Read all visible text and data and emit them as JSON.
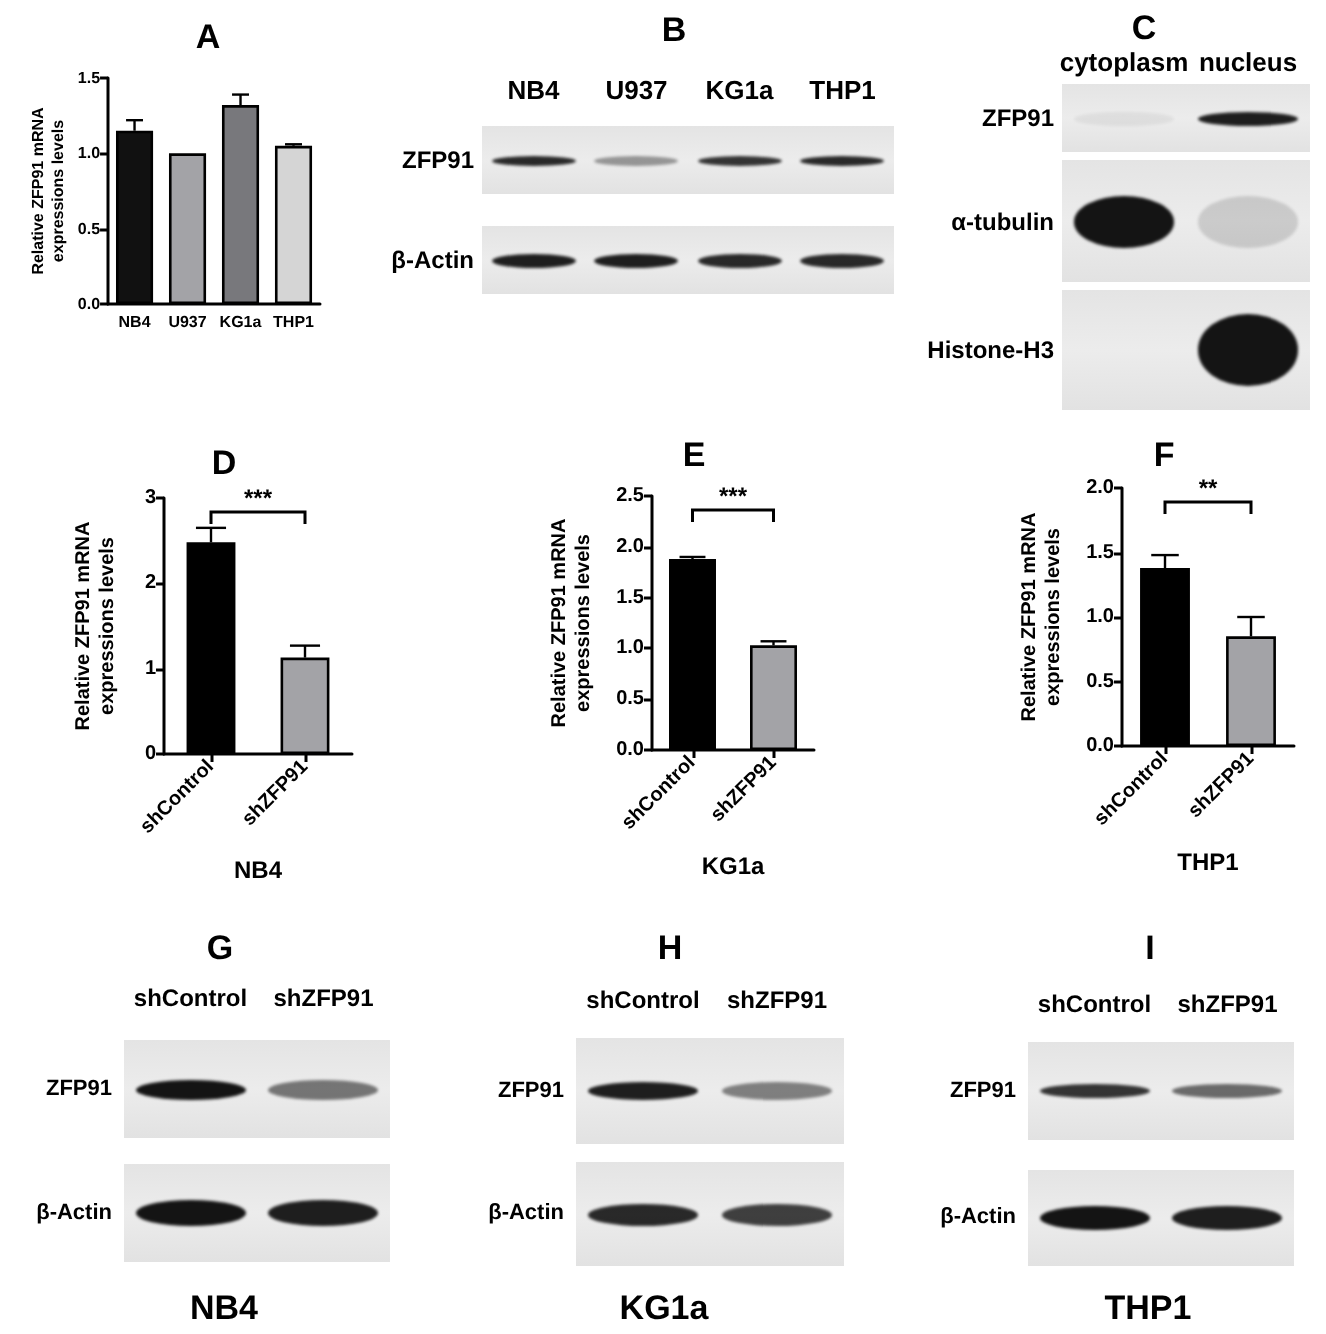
{
  "chart_data": [
    {
      "type": "bar",
      "title": "A",
      "ylabel": "Relative ZFP91 mRNA expressions levels",
      "categories": [
        "NB4",
        "U937",
        "KG1a",
        "THP1"
      ],
      "values": [
        1.15,
        1.0,
        1.32,
        1.05
      ],
      "colors": [
        "#111111",
        "#a3a3a7",
        "#78787c",
        "#d5d5d5"
      ],
      "errors": [
        [
          1.15,
          1.22
        ],
        null,
        [
          1.32,
          1.39
        ],
        [
          1.05,
          1.06
        ]
      ],
      "ylim": [
        0,
        1.5
      ],
      "yticks": [
        {
          "value": 0,
          "label": "0.0"
        },
        {
          "value": 0.5,
          "label": "0.5"
        },
        {
          "value": 1,
          "label": "1.0"
        },
        {
          "value": 1.5,
          "label": "1.5"
        }
      ]
    },
    {
      "type": "other",
      "title": "B",
      "categories": [
        "NB4",
        "U937",
        "KG1a",
        "THP1"
      ],
      "y_categories": [
        "ZFP91",
        "β-Actin"
      ]
    },
    {
      "type": "other",
      "title": "C",
      "categories": [
        "cytoplasm",
        "nucleus"
      ],
      "y_categories": [
        "ZFP91",
        "α-tubulin",
        "Histone-H3"
      ]
    },
    {
      "type": "bar",
      "title": "D",
      "ylabel": "Relative ZFP91 mRNA expressions levels",
      "xlabel": "NB4",
      "categories": [
        "shControl",
        "shZFP91"
      ],
      "values": [
        2.48,
        1.13
      ],
      "colors": [
        "#000000",
        "#a3a3a7"
      ],
      "errors": [
        [
          2.48,
          2.65
        ],
        [
          1.13,
          1.27
        ]
      ],
      "ylim": [
        0,
        3
      ],
      "yticks": [
        0,
        1,
        2,
        3
      ],
      "annotations": [
        "***"
      ]
    },
    {
      "type": "bar",
      "title": "E",
      "ylabel": "Relative ZFP91 mRNA expressions levels",
      "xlabel": "KG1a",
      "categories": [
        "shControl",
        "shZFP91"
      ],
      "values": [
        1.88,
        1.03
      ],
      "colors": [
        "#000000",
        "#a3a3a7"
      ],
      "errors": [
        [
          1.88,
          1.9
        ],
        [
          1.03,
          1.07
        ]
      ],
      "ylim": [
        0,
        2.5
      ],
      "yticks": [
        {
          "value": 0,
          "label": "0.0"
        },
        {
          "value": 0.5,
          "label": "0.5"
        },
        {
          "value": 1,
          "label": "1.0"
        },
        {
          "value": 1.5,
          "label": "1.5"
        },
        {
          "value": 2,
          "label": "2.0"
        },
        {
          "value": 2.5,
          "label": "2.5"
        }
      ],
      "annotations": [
        "***"
      ]
    },
    {
      "type": "bar",
      "title": "F",
      "ylabel": "Relative ZFP91 mRNA expressions levels",
      "xlabel": "THP1",
      "categories": [
        "shControl",
        "shZFP91"
      ],
      "values": [
        1.38,
        0.85
      ],
      "colors": [
        "#000000",
        "#a3a3a7"
      ],
      "errors": [
        [
          1.38,
          1.48
        ],
        [
          0.85,
          1.0
        ]
      ],
      "ylim": [
        0,
        2
      ],
      "yticks": [
        {
          "value": 0,
          "label": "0.0"
        },
        {
          "value": 0.5,
          "label": "0.5"
        },
        {
          "value": 1,
          "label": "1.0"
        },
        {
          "value": 1.5,
          "label": "1.5"
        },
        {
          "value": 2,
          "label": "2.0"
        }
      ],
      "annotations": [
        "**"
      ]
    },
    {
      "type": "other",
      "title": "G",
      "categories": [
        "shControl",
        "shZFP91"
      ],
      "y_categories": [
        "ZFP91",
        "β-Actin"
      ],
      "xlabel": "NB4"
    },
    {
      "type": "other",
      "title": "H",
      "categories": [
        "shControl",
        "shZFP91"
      ],
      "y_categories": [
        "ZFP91",
        "β-Actin"
      ],
      "xlabel": "KG1a"
    },
    {
      "type": "other",
      "title": "I",
      "categories": [
        "shControl",
        "shZFP91"
      ],
      "y_categories": [
        "ZFP91",
        "β-Actin"
      ],
      "xlabel": "THP1"
    }
  ]
}
